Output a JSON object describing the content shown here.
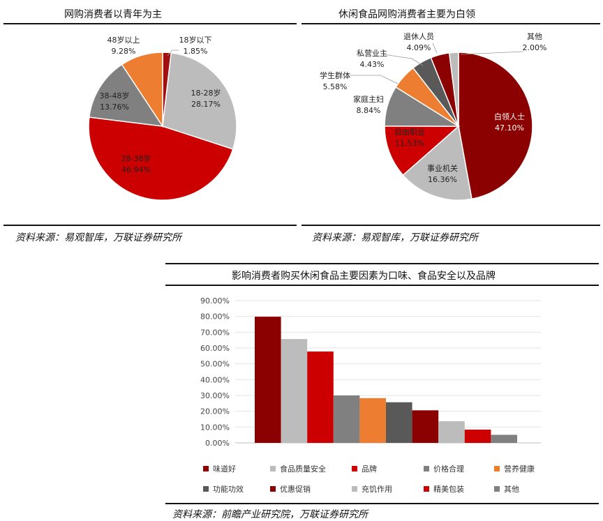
{
  "chart_data": [
    {
      "type": "pie",
      "title": "网购消费者以青年为主",
      "slices": [
        {
          "label": "18岁以下",
          "value": 1.85,
          "value_label": "1.85%",
          "color": "#a01010"
        },
        {
          "label": "18-28岁",
          "value": 28.17,
          "value_label": "28.17%",
          "color": "#bcbcbc"
        },
        {
          "label": "28-38岁",
          "value": 46.94,
          "value_label": "46.94%",
          "color": "#cc0000"
        },
        {
          "label": "38-48岁",
          "value": 13.76,
          "value_label": "13.76%",
          "color": "#808080"
        },
        {
          "label": "48岁以上",
          "value": 9.28,
          "value_label": "9.28%",
          "color": "#ed7d31"
        }
      ],
      "source": "资料来源：易观智库，万联证券研究所"
    },
    {
      "type": "pie",
      "title": "休闲食品网购消费者主要为白领",
      "slices": [
        {
          "label": "白领人士",
          "value": 47.1,
          "value_label": "47.10%",
          "color": "#8b0000"
        },
        {
          "label": "事业机关",
          "value": 16.36,
          "value_label": "16.36%",
          "color": "#bcbcbc"
        },
        {
          "label": "自由职业",
          "value": 11.53,
          "value_label": "11.53%",
          "color": "#cc0000"
        },
        {
          "label": "家庭主妇",
          "value": 8.84,
          "value_label": "8.84%",
          "color": "#808080"
        },
        {
          "label": "学生群体",
          "value": 5.58,
          "value_label": "5.58%",
          "color": "#ed7d31"
        },
        {
          "label": "私营业主",
          "value": 4.43,
          "value_label": "4.43%",
          "color": "#595959"
        },
        {
          "label": "退休人员",
          "value": 4.09,
          "value_label": "4.09%",
          "color": "#8b0000"
        },
        {
          "label": "其他",
          "value": 2.0,
          "value_label": "2.00%",
          "color": "#bcbcbc"
        }
      ],
      "source": "资料来源：易观智库，万联证券研究所"
    },
    {
      "type": "bar",
      "title": "影响消费者购买休闲食品主要因素为口味、食品安全以及品牌",
      "categories": [
        "味道好",
        "食品质量安全",
        "品牌",
        "价格合理",
        "营养健康",
        "功能功效",
        "优惠促销",
        "充饥作用",
        "精美包装",
        "其他"
      ],
      "values": [
        79.8,
        65.7,
        57.8,
        30.0,
        28.3,
        25.7,
        20.6,
        13.7,
        8.4,
        5.1
      ],
      "colors": [
        "#8b0000",
        "#bcbcbc",
        "#cc0000",
        "#808080",
        "#ed7d31",
        "#595959",
        "#8b0000",
        "#bcbcbc",
        "#cc0000",
        "#808080"
      ],
      "yticks": [
        "90.00%",
        "80.00%",
        "70.00%",
        "60.00%",
        "50.00%",
        "40.00%",
        "30.00%",
        "20.00%",
        "10.00%",
        "0.00%"
      ],
      "ylim": [
        0,
        90
      ],
      "grid": true,
      "legend_position": "bottom",
      "source": "资料来源：前瞻产业研究院，万联证券研究所"
    }
  ]
}
